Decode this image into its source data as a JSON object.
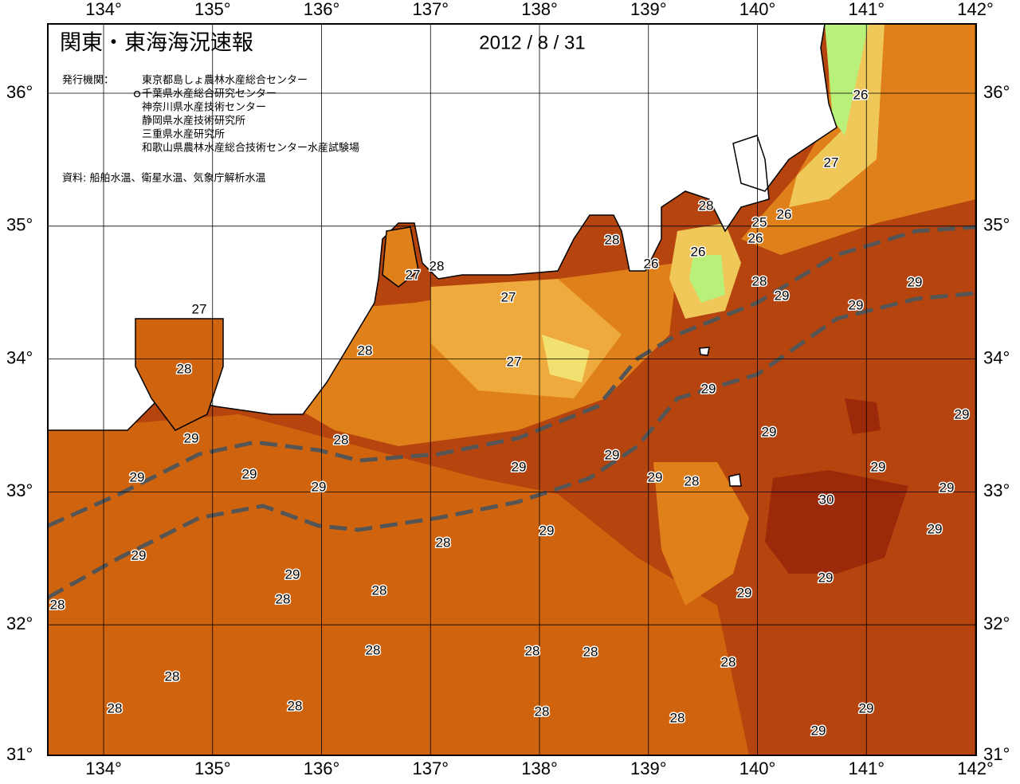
{
  "header": {
    "title": "関東・東海海況速報",
    "date": "2012 / 8 / 31",
    "issuer_label": "発行機関：",
    "issuers": [
      "東京都島しょ農林水産総合センター",
      "千葉県水産総合研究センター",
      "神奈川県水産技術センター",
      "静岡県水産技術研究所",
      "三重県水産研究所",
      "和歌山県農林水産総合技術センター水産試験場"
    ],
    "source": "資料: 船舶水温、衛星水温、気象庁解析水温"
  },
  "map": {
    "longitudes": [
      {
        "value": 134,
        "label": "134°"
      },
      {
        "value": 135,
        "label": "135°"
      },
      {
        "value": 136,
        "label": "136°"
      },
      {
        "value": 137,
        "label": "137°"
      },
      {
        "value": 138,
        "label": "138°"
      },
      {
        "value": 139,
        "label": "139°"
      },
      {
        "value": 140,
        "label": "140°"
      },
      {
        "value": 141,
        "label": "141°"
      },
      {
        "value": 142,
        "label": "142°"
      }
    ],
    "latitudes": [
      {
        "value": 36,
        "label": "36°"
      },
      {
        "value": 35,
        "label": "35°"
      },
      {
        "value": 34,
        "label": "34°"
      },
      {
        "value": 33,
        "label": "33°"
      },
      {
        "value": 32,
        "label": "32°"
      },
      {
        "value": 31,
        "label": "31°"
      }
    ],
    "contour_labels": [
      26,
      27,
      26,
      25,
      26,
      28,
      26,
      26,
      28,
      28,
      29,
      29,
      29,
      27,
      28,
      27,
      27,
      28,
      28,
      27,
      29,
      29,
      29,
      29,
      28,
      29,
      29,
      29,
      29,
      28,
      29,
      29,
      29,
      30,
      29,
      29,
      29,
      28,
      29,
      29,
      29,
      28,
      29,
      28,
      28,
      28,
      28,
      28,
      28,
      28,
      28,
      28,
      28,
      29,
      28,
      29
    ]
  }
}
